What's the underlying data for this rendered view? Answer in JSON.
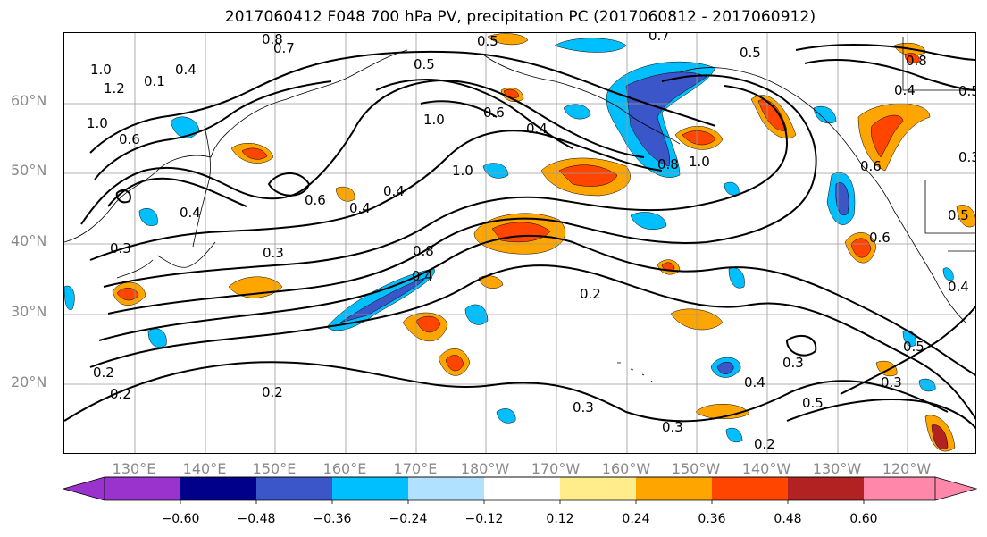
{
  "title": "2017060412 F048 700 hPa PV, precipitation PC (2017060812 - 2017060912)",
  "lat_labels": [
    "60°N",
    "50°N",
    "40°N",
    "30°N",
    "20°N"
  ],
  "lon_labels": [
    "130°E",
    "140°E",
    "150°E",
    "160°E",
    "170°E",
    "180°W",
    "170°W",
    "160°W",
    "150°W",
    "140°W",
    "130°W",
    "120°W"
  ],
  "colorbar": {
    "tick_labels": [
      "−0.60",
      "−0.48",
      "−0.36",
      "−0.24",
      "−0.12",
      "0.12",
      "0.24",
      "0.36",
      "0.48",
      "0.60"
    ],
    "colors": [
      "#9a32cd",
      "#00008b",
      "#3a56c8",
      "#00bfff",
      "#b0e2ff",
      "#ffffff",
      "#ffec8b",
      "#ffa500",
      "#ff4500",
      "#b22222",
      "#ff88aa"
    ]
  },
  "contour_labels": [
    "0.8",
    "0.7",
    "0.5",
    "0.5",
    "0.7",
    "0.8",
    "0.4",
    "1.0",
    "1.2",
    "0.4",
    "0.5",
    "0.5",
    "0.6",
    "0.4",
    "1.0",
    "1.0",
    "0.1",
    "0.6",
    "1.0",
    "0.8",
    "1.0",
    "0.4",
    "0.6",
    "0.4",
    "0.4",
    "0.3",
    "0.8",
    "0.4",
    "0.2",
    "0.3",
    "0.2",
    "0.2",
    "0.2",
    "0.3",
    "0.3",
    "0.3",
    "0.4",
    "0.5",
    "0.3",
    "0.2",
    "0.5",
    "0.6",
    "0.6",
    "0.5",
    "0.3",
    "0.4"
  ]
}
